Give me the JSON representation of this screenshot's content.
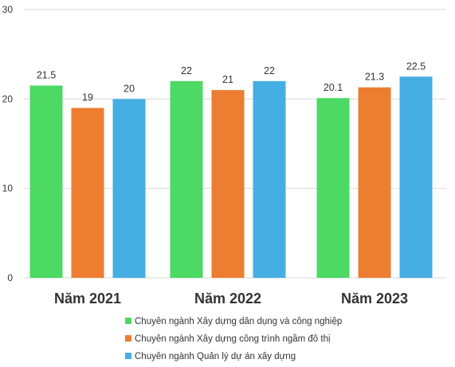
{
  "chart_data": {
    "type": "bar",
    "categories": [
      "Năm 2021",
      "Năm 2022",
      "Năm 2023"
    ],
    "series": [
      {
        "name": "Chuyên ngành Xây dựng dân dụng và công nghiệp",
        "color": "#4cd964",
        "values": [
          21.5,
          22,
          20.1
        ],
        "labels": [
          "21.5",
          "22",
          "20.1"
        ]
      },
      {
        "name": "Chuyên ngành Xây dựng công trình ngầm đô thị",
        "color": "#ed7d31",
        "values": [
          19,
          21,
          21.3
        ],
        "labels": [
          "19",
          "21",
          "21.3"
        ]
      },
      {
        "name": "Chuyên ngành Quản lý dự án xây dựng",
        "color": "#45aee3",
        "values": [
          20,
          22,
          22.5
        ],
        "labels": [
          "20",
          "22",
          "22.5"
        ]
      }
    ],
    "title": "",
    "xlabel": "",
    "ylabel": "",
    "ylim": [
      0,
      30
    ],
    "yticks": [
      0,
      10,
      20,
      30
    ],
    "ytick_labels": [
      "0",
      "10",
      "20",
      "30"
    ],
    "grid": true,
    "legend_position": "bottom-center"
  }
}
